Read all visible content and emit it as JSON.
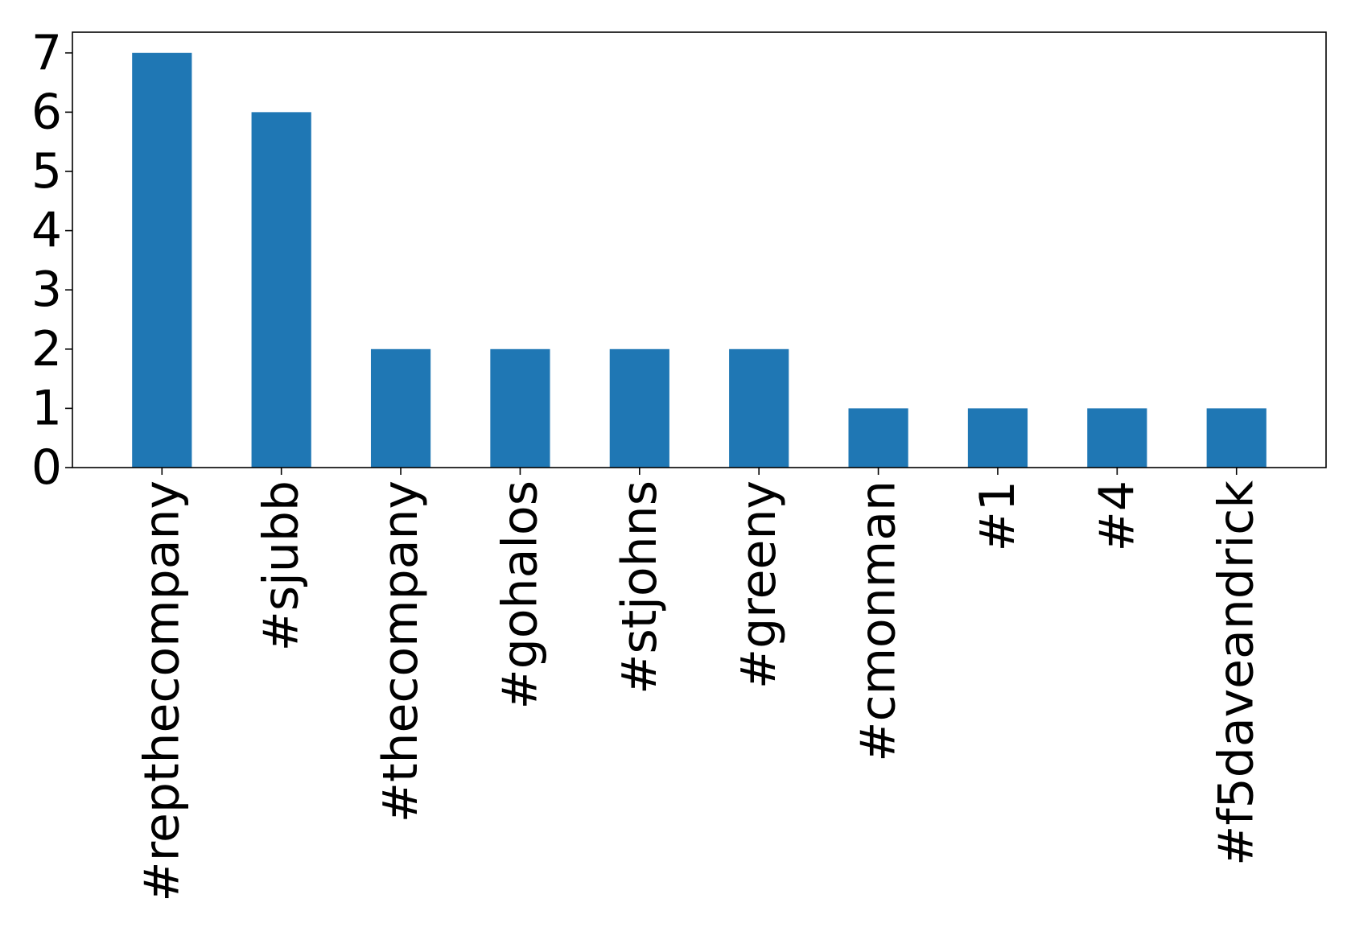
{
  "chart_data": {
    "type": "bar",
    "categories": [
      "#repthecompany",
      "#sjubb",
      "#thecompany",
      "#gohalos",
      "#stjohns",
      "#greeny",
      "#cmonman",
      "#1",
      "#4",
      "#f5daveandrick"
    ],
    "values": [
      7,
      6,
      2,
      2,
      2,
      2,
      1,
      1,
      1,
      1
    ],
    "yticks": [
      0,
      1,
      2,
      3,
      4,
      5,
      6,
      7
    ],
    "ylim": [
      0,
      7.35
    ],
    "title": "",
    "xlabel": "",
    "ylabel": "",
    "grid": false,
    "bar_color": "#1f77b4",
    "xtick_rotation": "vertical"
  }
}
